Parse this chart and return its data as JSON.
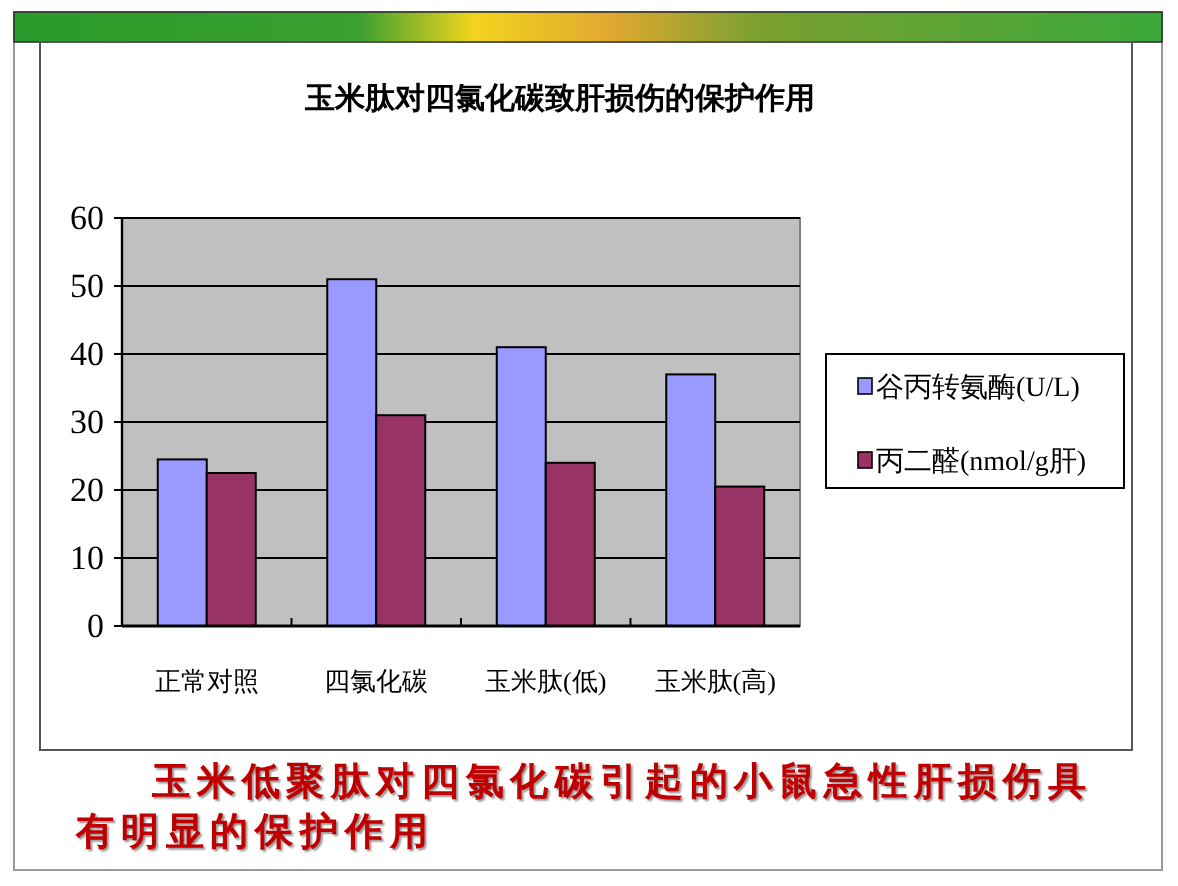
{
  "chart_data": {
    "type": "bar",
    "title": "玉米肽对四氯化碳致肝损伤的保护作用",
    "categories": [
      "正常对照",
      "四氯化碳",
      "玉米肽(低)",
      "玉米肽(高)"
    ],
    "series": [
      {
        "name": "谷丙转氨酶(U/L)",
        "color": "#9999ff",
        "values": [
          24.5,
          51,
          41,
          37
        ]
      },
      {
        "name": "丙二醛(nmol/g肝)",
        "color": "#993366",
        "values": [
          22.5,
          31,
          24,
          20.5
        ]
      }
    ],
    "ylim": [
      0,
      60
    ],
    "yticks": [
      0,
      10,
      20,
      30,
      40,
      50,
      60
    ],
    "grid": "y",
    "legend": "right",
    "annotations": [
      "玉米低聚肽对四氯化碳引起的小鼠急性肝损伤具有明显的保护作用"
    ]
  }
}
